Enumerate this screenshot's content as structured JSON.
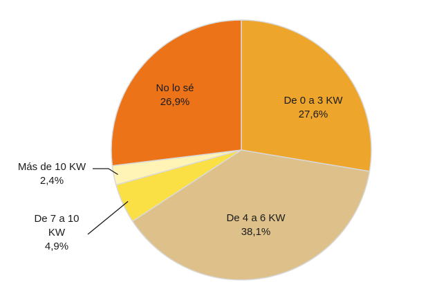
{
  "chart_data": {
    "type": "pie",
    "title": "",
    "slices": [
      {
        "label": "De 0 a 3 KW",
        "value_text": "27,6%",
        "value": 27.6,
        "color": "#EDA52B"
      },
      {
        "label": "De 4 a 6 KW",
        "value_text": "38,1%",
        "value": 38.1,
        "color": "#DDC08A"
      },
      {
        "label": "De 7 a 10 KW",
        "value_text": "4,9%",
        "value": 4.9,
        "color": "#FBE045"
      },
      {
        "label": "Más de 10 KW",
        "value_text": "2,4%",
        "value": 2.4,
        "color": "#FFF3B5"
      },
      {
        "label": "No lo sé",
        "value_text": "26,9%",
        "value": 26.9,
        "color": "#EC7317"
      }
    ],
    "start_angle": "12 o'clock",
    "direction": "clockwise",
    "slice_border_color": "#D9D9D9",
    "label_color": "#1a1a1a"
  }
}
